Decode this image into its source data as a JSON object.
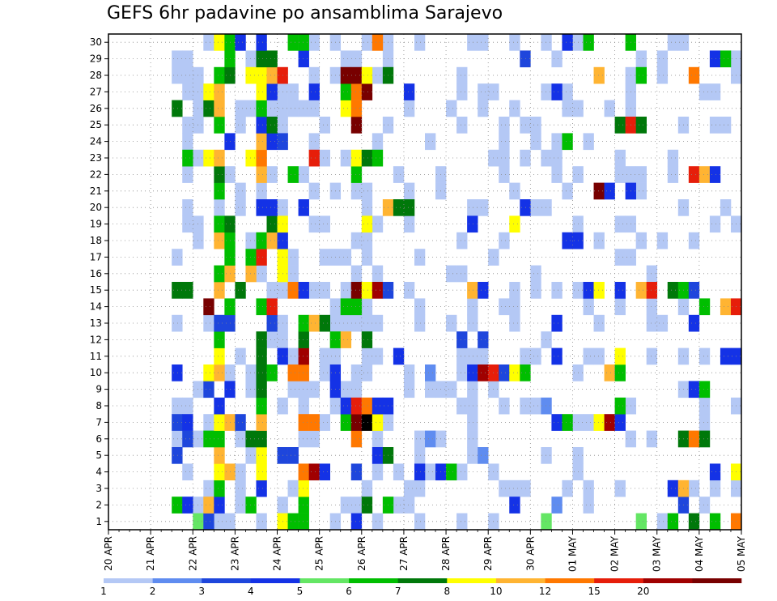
{
  "chart_data": {
    "type": "heatmap",
    "title": "GEFS 6hr padavine po ansamblima Sarajevo",
    "y_ticks": [
      "1",
      "2",
      "3",
      "4",
      "5",
      "6",
      "7",
      "8",
      "9",
      "10",
      "11",
      "12",
      "13",
      "14",
      "15",
      "16",
      "17",
      "18",
      "19",
      "20",
      "21",
      "22",
      "23",
      "24",
      "25",
      "26",
      "27",
      "28",
      "29",
      "30"
    ],
    "x_ticks": [
      "20 APR",
      "21 APR",
      "22 APR",
      "23 APR",
      "24 APR",
      "25 APR",
      "26 APR",
      "27 APR",
      "28 APR",
      "29 APR",
      "30 APR",
      "01 MAY",
      "02 MAY",
      "03 MAY",
      "04 MAY",
      "05 MAY"
    ],
    "x_steps_per_day": 4,
    "x_total_steps": 60,
    "y_members": 30,
    "grid": true,
    "colorbar": {
      "labels": [
        "1",
        "2",
        "3",
        "4",
        "5",
        "6",
        "7",
        "8",
        "10",
        "12",
        "15",
        "20"
      ],
      "colors": [
        "#b4c8f5",
        "#5f8cf0",
        "#1e46dc",
        "#1432e6",
        "#64e664",
        "#00be00",
        "#00780a",
        "#ffff00",
        "#ffb432",
        "#ff7800",
        "#e61e0a",
        "#a00000",
        "#780000"
      ]
    },
    "cells": [
      [
        1,
        8,
        4
      ],
      [
        1,
        9,
        2
      ],
      [
        1,
        16,
        7
      ],
      [
        1,
        17,
        5
      ],
      [
        1,
        18,
        5
      ],
      [
        1,
        23,
        3
      ],
      [
        1,
        41,
        4
      ],
      [
        1,
        50,
        4
      ],
      [
        1,
        53,
        5
      ],
      [
        1,
        55,
        6
      ],
      [
        1,
        57,
        5
      ],
      [
        1,
        59,
        9
      ],
      [
        2,
        6,
        5
      ],
      [
        2,
        7,
        3
      ],
      [
        2,
        9,
        8
      ],
      [
        2,
        10,
        3
      ],
      [
        2,
        13,
        5
      ],
      [
        2,
        18,
        5
      ],
      [
        2,
        24,
        6
      ],
      [
        2,
        26,
        5
      ],
      [
        2,
        38,
        3
      ],
      [
        2,
        42,
        1
      ],
      [
        2,
        54,
        2
      ],
      [
        3,
        10,
        5
      ],
      [
        3,
        14,
        3
      ],
      [
        3,
        18,
        7
      ],
      [
        3,
        53,
        3
      ],
      [
        3,
        54,
        8
      ],
      [
        4,
        10,
        7
      ],
      [
        4,
        11,
        8
      ],
      [
        4,
        14,
        7
      ],
      [
        4,
        18,
        9
      ],
      [
        4,
        19,
        11
      ],
      [
        4,
        20,
        3
      ],
      [
        4,
        23,
        2
      ],
      [
        4,
        29,
        3
      ],
      [
        4,
        31,
        3
      ],
      [
        4,
        32,
        5
      ],
      [
        4,
        57,
        3
      ],
      [
        4,
        59,
        7
      ],
      [
        5,
        6,
        2
      ],
      [
        5,
        10,
        8
      ],
      [
        5,
        14,
        7
      ],
      [
        5,
        16,
        2
      ],
      [
        5,
        17,
        2
      ],
      [
        5,
        25,
        3
      ],
      [
        5,
        26,
        6
      ],
      [
        5,
        35,
        1
      ],
      [
        6,
        7,
        2
      ],
      [
        6,
        9,
        5
      ],
      [
        6,
        10,
        5
      ],
      [
        6,
        13,
        6
      ],
      [
        6,
        14,
        6
      ],
      [
        6,
        23,
        9
      ],
      [
        6,
        30,
        1
      ],
      [
        6,
        54,
        6
      ],
      [
        6,
        55,
        9
      ],
      [
        6,
        56,
        6
      ],
      [
        7,
        6,
        2
      ],
      [
        7,
        7,
        3
      ],
      [
        7,
        10,
        7
      ],
      [
        7,
        11,
        8
      ],
      [
        7,
        12,
        2
      ],
      [
        7,
        14,
        8
      ],
      [
        7,
        18,
        9
      ],
      [
        7,
        19,
        9
      ],
      [
        7,
        22,
        5
      ],
      [
        7,
        23,
        12
      ],
      [
        7,
        24,
        13
      ],
      [
        7,
        25,
        7
      ],
      [
        7,
        42,
        3
      ],
      [
        7,
        43,
        5
      ],
      [
        7,
        46,
        7
      ],
      [
        7,
        47,
        11
      ],
      [
        7,
        48,
        3
      ],
      [
        8,
        10,
        3
      ],
      [
        8,
        14,
        5
      ],
      [
        8,
        22,
        3
      ],
      [
        8,
        23,
        10
      ],
      [
        8,
        24,
        9
      ],
      [
        8,
        25,
        3
      ],
      [
        8,
        26,
        3
      ],
      [
        8,
        41,
        1
      ],
      [
        8,
        48,
        5
      ],
      [
        9,
        9,
        2
      ],
      [
        9,
        11,
        3
      ],
      [
        9,
        14,
        6
      ],
      [
        9,
        21,
        3
      ],
      [
        9,
        55,
        3
      ],
      [
        9,
        56,
        5
      ],
      [
        10,
        6,
        3
      ],
      [
        10,
        9,
        7
      ],
      [
        10,
        10,
        8
      ],
      [
        10,
        14,
        6
      ],
      [
        10,
        15,
        5
      ],
      [
        10,
        17,
        9
      ],
      [
        10,
        18,
        9
      ],
      [
        10,
        21,
        3
      ],
      [
        10,
        30,
        1
      ],
      [
        10,
        34,
        3
      ],
      [
        10,
        35,
        11
      ],
      [
        10,
        36,
        10
      ],
      [
        10,
        37,
        2
      ],
      [
        10,
        38,
        7
      ],
      [
        10,
        39,
        5
      ],
      [
        10,
        47,
        8
      ],
      [
        10,
        48,
        5
      ],
      [
        11,
        10,
        7
      ],
      [
        11,
        14,
        6
      ],
      [
        11,
        16,
        3
      ],
      [
        11,
        18,
        11
      ],
      [
        11,
        27,
        3
      ],
      [
        11,
        42,
        3
      ],
      [
        11,
        48,
        7
      ],
      [
        11,
        58,
        3
      ],
      [
        11,
        59,
        3
      ],
      [
        12,
        10,
        5
      ],
      [
        12,
        14,
        6
      ],
      [
        12,
        18,
        6
      ],
      [
        12,
        21,
        5
      ],
      [
        12,
        22,
        8
      ],
      [
        12,
        24,
        6
      ],
      [
        12,
        33,
        2
      ],
      [
        12,
        35,
        2
      ],
      [
        13,
        10,
        2
      ],
      [
        13,
        11,
        2
      ],
      [
        13,
        15,
        2
      ],
      [
        13,
        18,
        5
      ],
      [
        13,
        19,
        8
      ],
      [
        13,
        20,
        6
      ],
      [
        13,
        42,
        3
      ],
      [
        13,
        55,
        3
      ],
      [
        14,
        9,
        12
      ],
      [
        14,
        11,
        5
      ],
      [
        14,
        14,
        5
      ],
      [
        14,
        15,
        10
      ],
      [
        14,
        22,
        5
      ],
      [
        14,
        23,
        5
      ],
      [
        14,
        56,
        5
      ],
      [
        14,
        58,
        8
      ],
      [
        14,
        59,
        10
      ],
      [
        15,
        6,
        6
      ],
      [
        15,
        7,
        6
      ],
      [
        15,
        10,
        8
      ],
      [
        15,
        12,
        6
      ],
      [
        15,
        17,
        9
      ],
      [
        15,
        18,
        3
      ],
      [
        15,
        23,
        12
      ],
      [
        15,
        24,
        7
      ],
      [
        15,
        25,
        11
      ],
      [
        15,
        26,
        2
      ],
      [
        15,
        34,
        8
      ],
      [
        15,
        35,
        3
      ],
      [
        15,
        45,
        3
      ],
      [
        15,
        46,
        7
      ],
      [
        15,
        48,
        3
      ],
      [
        15,
        50,
        8
      ],
      [
        15,
        51,
        10
      ],
      [
        15,
        53,
        6
      ],
      [
        15,
        54,
        5
      ],
      [
        15,
        55,
        2
      ],
      [
        16,
        10,
        5
      ],
      [
        16,
        11,
        8
      ],
      [
        16,
        13,
        8
      ],
      [
        16,
        16,
        7
      ],
      [
        17,
        11,
        5
      ],
      [
        17,
        13,
        5
      ],
      [
        17,
        14,
        10
      ],
      [
        17,
        16,
        7
      ],
      [
        18,
        10,
        8
      ],
      [
        18,
        11,
        5
      ],
      [
        18,
        14,
        5
      ],
      [
        18,
        15,
        8
      ],
      [
        18,
        16,
        3
      ],
      [
        18,
        43,
        3
      ],
      [
        18,
        44,
        3
      ],
      [
        19,
        10,
        5
      ],
      [
        19,
        11,
        6
      ],
      [
        19,
        15,
        6
      ],
      [
        19,
        16,
        7
      ],
      [
        19,
        24,
        7
      ],
      [
        19,
        34,
        3
      ],
      [
        19,
        38,
        7
      ],
      [
        20,
        14,
        3
      ],
      [
        20,
        15,
        3
      ],
      [
        20,
        18,
        3
      ],
      [
        20,
        26,
        8
      ],
      [
        20,
        27,
        6
      ],
      [
        20,
        28,
        6
      ],
      [
        20,
        39,
        3
      ],
      [
        21,
        10,
        5
      ],
      [
        21,
        46,
        12
      ],
      [
        21,
        47,
        3
      ],
      [
        21,
        49,
        3
      ],
      [
        22,
        10,
        6
      ],
      [
        22,
        14,
        8
      ],
      [
        22,
        17,
        5
      ],
      [
        22,
        23,
        5
      ],
      [
        22,
        55,
        10
      ],
      [
        22,
        56,
        8
      ],
      [
        22,
        57,
        3
      ],
      [
        23,
        7,
        5
      ],
      [
        23,
        9,
        7
      ],
      [
        23,
        10,
        8
      ],
      [
        23,
        13,
        7
      ],
      [
        23,
        14,
        9
      ],
      [
        23,
        19,
        10
      ],
      [
        23,
        23,
        7
      ],
      [
        23,
        24,
        6
      ],
      [
        23,
        25,
        5
      ],
      [
        24,
        11,
        3
      ],
      [
        24,
        14,
        8
      ],
      [
        24,
        15,
        3
      ],
      [
        24,
        16,
        2
      ],
      [
        24,
        43,
        5
      ],
      [
        25,
        10,
        5
      ],
      [
        25,
        14,
        3
      ],
      [
        25,
        15,
        6
      ],
      [
        25,
        23,
        12
      ],
      [
        25,
        48,
        6
      ],
      [
        25,
        49,
        10
      ],
      [
        25,
        50,
        6
      ],
      [
        26,
        6,
        6
      ],
      [
        26,
        9,
        6
      ],
      [
        26,
        10,
        8
      ],
      [
        26,
        14,
        5
      ],
      [
        26,
        22,
        7
      ],
      [
        26,
        23,
        9
      ],
      [
        27,
        9,
        7
      ],
      [
        27,
        10,
        8
      ],
      [
        27,
        14,
        7
      ],
      [
        27,
        15,
        3
      ],
      [
        27,
        19,
        3
      ],
      [
        27,
        22,
        5
      ],
      [
        27,
        23,
        9
      ],
      [
        27,
        24,
        12
      ],
      [
        27,
        28,
        3
      ],
      [
        27,
        42,
        3
      ],
      [
        28,
        10,
        5
      ],
      [
        28,
        11,
        6
      ],
      [
        28,
        13,
        7
      ],
      [
        28,
        14,
        7
      ],
      [
        28,
        15,
        8
      ],
      [
        28,
        16,
        10
      ],
      [
        28,
        22,
        12
      ],
      [
        28,
        23,
        12
      ],
      [
        28,
        24,
        7
      ],
      [
        28,
        26,
        6
      ],
      [
        28,
        46,
        8
      ],
      [
        28,
        50,
        5
      ],
      [
        28,
        55,
        9
      ],
      [
        29,
        11,
        5
      ],
      [
        29,
        14,
        6
      ],
      [
        29,
        15,
        6
      ],
      [
        29,
        18,
        3
      ],
      [
        29,
        39,
        2
      ],
      [
        29,
        57,
        3
      ],
      [
        29,
        58,
        5
      ],
      [
        30,
        10,
        7
      ],
      [
        30,
        11,
        5
      ],
      [
        30,
        12,
        3
      ],
      [
        30,
        14,
        3
      ],
      [
        30,
        17,
        5
      ],
      [
        30,
        18,
        5
      ],
      [
        30,
        25,
        9
      ],
      [
        30,
        43,
        3
      ],
      [
        30,
        45,
        5
      ],
      [
        30,
        49,
        5
      ]
    ],
    "light_fill_cols": [
      8,
      9,
      10,
      11,
      12,
      13,
      14,
      15,
      16,
      17,
      18,
      19,
      20,
      21,
      22,
      23,
      24,
      25,
      26,
      27,
      28,
      29,
      30,
      31,
      32,
      33,
      34,
      35,
      36,
      37,
      38,
      39,
      40,
      41,
      42,
      43,
      44,
      45,
      46,
      47,
      48,
      49,
      50,
      51,
      52,
      53,
      54,
      55,
      56,
      57,
      58,
      59
    ],
    "light_fill_seed": 7
  }
}
